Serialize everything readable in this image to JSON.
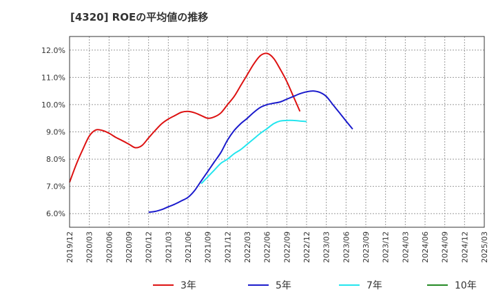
{
  "chart_data": {
    "type": "line",
    "title": "[4320]  ROEの平均値の推移",
    "xlabel": "",
    "ylabel": "",
    "ylim": [
      5.5,
      12.5
    ],
    "y_ticks": [
      6.0,
      7.0,
      8.0,
      9.0,
      10.0,
      11.0,
      12.0
    ],
    "y_tick_labels": [
      "6.0%",
      "7.0%",
      "8.0%",
      "9.0%",
      "10.0%",
      "11.0%",
      "12.0%"
    ],
    "x_tick_labels": [
      "2019/12",
      "2020/03",
      "2020/06",
      "2020/09",
      "2020/12",
      "2021/03",
      "2021/06",
      "2021/09",
      "2021/12",
      "2022/03",
      "2022/06",
      "2022/09",
      "2022/12",
      "2023/03",
      "2023/06",
      "2023/09",
      "2023/12",
      "2024/03",
      "2024/06",
      "2024/09",
      "2024/12",
      "2025/03"
    ],
    "grid": true,
    "legend_position": "bottom",
    "series": [
      {
        "name": "3年",
        "color": "#dd1111",
        "start_index": 0,
        "values": [
          7.15,
          7.8,
          8.35,
          8.85,
          9.07,
          9.05,
          8.95,
          8.8,
          8.68,
          8.55,
          8.42,
          8.5,
          8.78,
          9.05,
          9.3,
          9.47,
          9.6,
          9.72,
          9.75,
          9.7,
          9.6,
          9.5,
          9.55,
          9.7,
          10.0,
          10.3,
          10.7,
          11.1,
          11.5,
          11.8,
          11.88,
          11.7,
          11.3,
          10.85,
          10.3,
          9.75
        ]
      },
      {
        "name": "5年",
        "color": "#1a1acc",
        "start_index": 12,
        "values": [
          6.05,
          6.08,
          6.15,
          6.25,
          6.35,
          6.47,
          6.6,
          6.85,
          7.2,
          7.55,
          7.9,
          8.25,
          8.7,
          9.05,
          9.3,
          9.5,
          9.72,
          9.9,
          10.0,
          10.05,
          10.1,
          10.2,
          10.3,
          10.4,
          10.47,
          10.5,
          10.45,
          10.3,
          10.0,
          9.7,
          9.4,
          9.1
        ]
      },
      {
        "name": "7年",
        "color": "#22e5ee",
        "start_index": 20,
        "values": [
          7.1,
          7.35,
          7.6,
          7.85,
          8.0,
          8.2,
          8.35,
          8.55,
          8.75,
          8.95,
          9.12,
          9.3,
          9.4,
          9.42,
          9.42,
          9.4,
          9.38
        ]
      },
      {
        "name": "10年",
        "color": "#228822",
        "start_index": 0,
        "values": []
      }
    ]
  }
}
